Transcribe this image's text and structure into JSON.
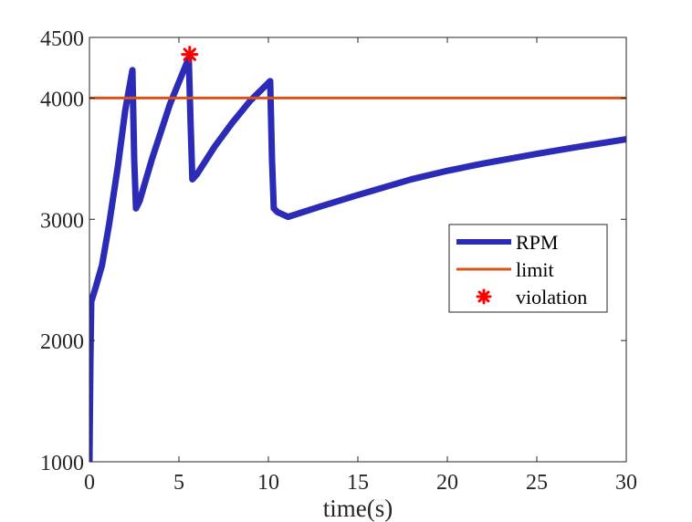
{
  "chart_data": {
    "type": "line",
    "title": "",
    "xlabel": "time(s)",
    "ylabel": "",
    "xlim": [
      0,
      30
    ],
    "ylim": [
      1000,
      4500
    ],
    "xticks": [
      0,
      5,
      10,
      15,
      20,
      25,
      30
    ],
    "yticks": [
      1000,
      2000,
      3000,
      4000,
      4500
    ],
    "xtick_labels": [
      "0",
      "5",
      "10",
      "15",
      "20",
      "25",
      "30"
    ],
    "ytick_labels": [
      "1000",
      "2000",
      "3000",
      "4000",
      "4500"
    ],
    "grid": false,
    "legend_position": "right-middle",
    "series": [
      {
        "name": "RPM",
        "color": "#2b2bb8",
        "style": "thick-line",
        "x": [
          0,
          0.05,
          0.1,
          0.35,
          0.7,
          1.1,
          1.6,
          2.0,
          2.4,
          2.5,
          2.6,
          2.8,
          3.5,
          4.5,
          5.55,
          5.65,
          5.75,
          6.0,
          7.0,
          8.0,
          9.0,
          10.1,
          10.2,
          10.3,
          10.5,
          11.1,
          13,
          15,
          18,
          20,
          22,
          25,
          27,
          30
        ],
        "y": [
          1000,
          1800,
          2320,
          2440,
          2620,
          2960,
          3450,
          3900,
          4230,
          3500,
          3090,
          3150,
          3500,
          3950,
          4330,
          3800,
          3330,
          3370,
          3600,
          3800,
          3980,
          4140,
          3500,
          3090,
          3060,
          3020,
          3110,
          3200,
          3330,
          3400,
          3460,
          3540,
          3590,
          3660
        ]
      },
      {
        "name": "limit",
        "color": "#d95319",
        "style": "line",
        "x": [
          0,
          30
        ],
        "y": [
          4000,
          4000
        ]
      },
      {
        "name": "violation",
        "color": "#ff0000",
        "style": "marker-asterisk",
        "x": [
          5.6
        ],
        "y": [
          4360
        ]
      }
    ]
  },
  "legend": {
    "items": [
      {
        "label": "RPM",
        "color": "#2b2bb8"
      },
      {
        "label": "limit",
        "color": "#d95319"
      },
      {
        "label": "violation",
        "color": "#ff0000"
      }
    ]
  }
}
